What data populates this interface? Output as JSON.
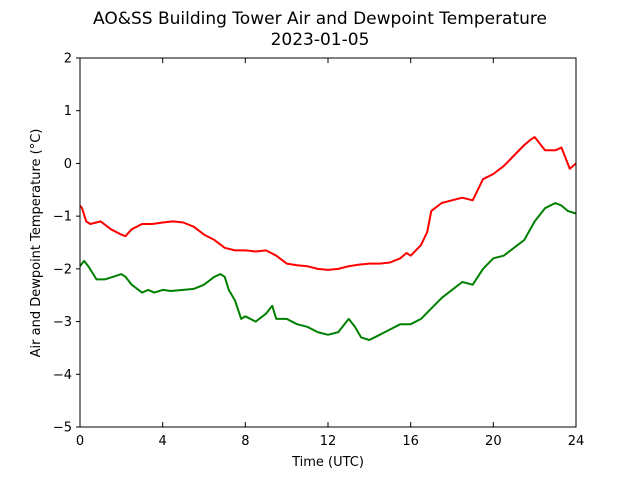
{
  "chart_data": {
    "type": "line",
    "title": "AO&SS Building Tower Air and Dewpoint Temperature",
    "subtitle": "2023-01-05",
    "xlabel": "Time (UTC)",
    "ylabel": "Air and Dewpoint Temperature (°C)",
    "xlim": [
      0,
      24
    ],
    "ylim": [
      -5,
      2
    ],
    "xticks": [
      "0",
      "4",
      "8",
      "12",
      "16",
      "20",
      "24"
    ],
    "yticks": [
      "2",
      "1",
      "0",
      "−1",
      "−2",
      "−3",
      "−4",
      "−5"
    ],
    "grid": false,
    "series": [
      {
        "color": "#ff0000",
        "x": [
          0,
          0.1,
          0.3,
          0.5,
          1.0,
          1.5,
          2.0,
          2.2,
          2.5,
          3.0,
          3.5,
          4.0,
          4.5,
          5.0,
          5.5,
          6.0,
          6.5,
          7.0,
          7.5,
          8.0,
          8.5,
          9.0,
          9.5,
          10.0,
          10.5,
          11.0,
          11.5,
          12.0,
          12.5,
          13.0,
          13.5,
          14.0,
          14.5,
          15.0,
          15.5,
          15.8,
          16.0,
          16.5,
          16.8,
          17.0,
          17.5,
          18.0,
          18.5,
          19.0,
          19.5,
          20.0,
          20.5,
          21.0,
          21.5,
          21.8,
          22.0,
          22.5,
          23.0,
          23.3,
          23.7,
          24.0
        ],
        "values": [
          -0.8,
          -0.85,
          -1.1,
          -1.15,
          -1.1,
          -1.25,
          -1.35,
          -1.38,
          -1.25,
          -1.15,
          -1.15,
          -1.12,
          -1.1,
          -1.12,
          -1.2,
          -1.35,
          -1.45,
          -1.6,
          -1.65,
          -1.65,
          -1.67,
          -1.65,
          -1.75,
          -1.9,
          -1.93,
          -1.95,
          -2.0,
          -2.02,
          -2.0,
          -1.95,
          -1.92,
          -1.9,
          -1.9,
          -1.88,
          -1.8,
          -1.7,
          -1.75,
          -1.55,
          -1.3,
          -0.9,
          -0.75,
          -0.7,
          -0.65,
          -0.7,
          -0.3,
          -0.2,
          -0.05,
          0.15,
          0.35,
          0.45,
          0.5,
          0.25,
          0.25,
          0.3,
          -0.1,
          0.0
        ]
      },
      {
        "color": "#008000",
        "x": [
          0,
          0.2,
          0.4,
          0.8,
          1.2,
          1.6,
          2.0,
          2.2,
          2.5,
          3.0,
          3.3,
          3.6,
          4.0,
          4.4,
          5.0,
          5.5,
          6.0,
          6.5,
          6.8,
          7.0,
          7.2,
          7.5,
          7.8,
          8.0,
          8.5,
          9.0,
          9.3,
          9.5,
          10.0,
          10.5,
          11.0,
          11.5,
          12.0,
          12.5,
          13.0,
          13.3,
          13.6,
          14.0,
          14.5,
          15.0,
          15.5,
          16.0,
          16.5,
          17.0,
          17.5,
          18.0,
          18.5,
          19.0,
          19.5,
          20.0,
          20.5,
          21.0,
          21.5,
          22.0,
          22.5,
          23.0,
          23.3,
          23.6,
          24.0
        ],
        "values": [
          -1.95,
          -1.85,
          -1.95,
          -2.2,
          -2.2,
          -2.15,
          -2.1,
          -2.15,
          -2.3,
          -2.45,
          -2.4,
          -2.45,
          -2.4,
          -2.42,
          -2.4,
          -2.38,
          -2.3,
          -2.15,
          -2.1,
          -2.15,
          -2.4,
          -2.6,
          -2.95,
          -2.9,
          -3.0,
          -2.85,
          -2.7,
          -2.95,
          -2.95,
          -3.05,
          -3.1,
          -3.2,
          -3.25,
          -3.2,
          -2.95,
          -3.1,
          -3.3,
          -3.35,
          -3.25,
          -3.15,
          -3.05,
          -3.05,
          -2.95,
          -2.75,
          -2.55,
          -2.4,
          -2.25,
          -2.3,
          -2.0,
          -1.8,
          -1.75,
          -1.6,
          -1.45,
          -1.1,
          -0.85,
          -0.75,
          -0.8,
          -0.9,
          -0.95
        ]
      }
    ]
  }
}
